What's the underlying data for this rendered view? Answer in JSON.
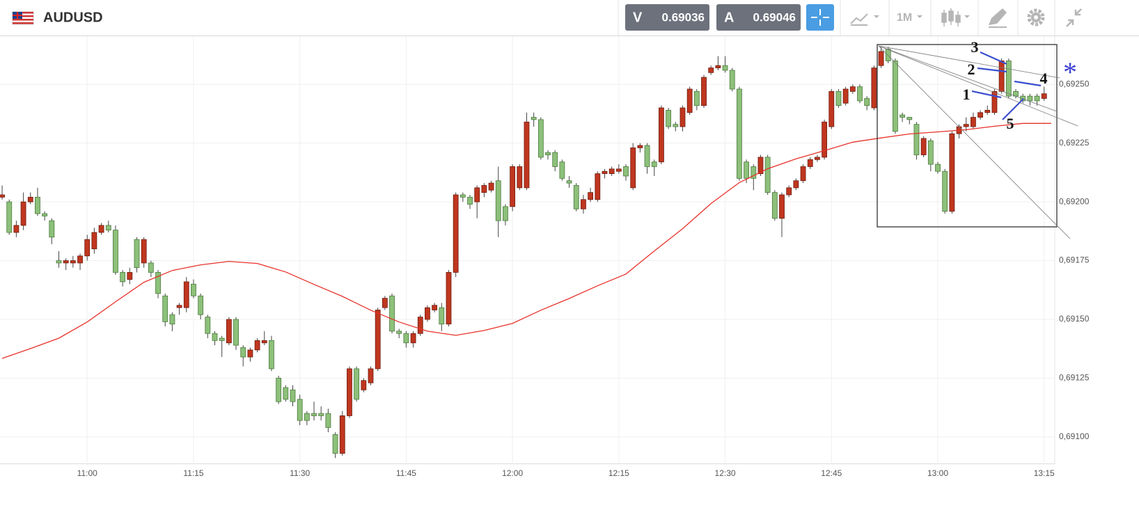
{
  "toolbar": {
    "symbol": "AUDUSD",
    "sell_label": "V",
    "sell_price": "0.69036",
    "buy_label": "A",
    "buy_price": "0.69046",
    "timeframe": "1M"
  },
  "chart_data": {
    "type": "candlestick",
    "up_color": "#c0361f",
    "down_color": "#8dc07a",
    "xlim": [
      647.7,
      796.5
    ],
    "xticks": [
      {
        "value": 660,
        "label": "11:00"
      },
      {
        "value": 675,
        "label": "11:15"
      },
      {
        "value": 690,
        "label": "11:30"
      },
      {
        "value": 705,
        "label": "11:45"
      },
      {
        "value": 720,
        "label": "12:00"
      },
      {
        "value": 735,
        "label": "12:15"
      },
      {
        "value": 750,
        "label": "12:30"
      },
      {
        "value": 765,
        "label": "12:45"
      },
      {
        "value": 780,
        "label": "13:00"
      },
      {
        "value": 795,
        "label": "13:15"
      }
    ],
    "ylim": [
      0.69089,
      0.692705
    ],
    "yticks": [
      {
        "value": 0.691,
        "label": "0,69100"
      },
      {
        "value": 0.69125,
        "label": "0,69125"
      },
      {
        "value": 0.6915,
        "label": "0,69150"
      },
      {
        "value": 0.69175,
        "label": "0,69175"
      },
      {
        "value": 0.692,
        "label": "0,69200"
      },
      {
        "value": 0.69225,
        "label": "0,69225"
      },
      {
        "value": 0.6925,
        "label": "0,69250"
      }
    ],
    "grid": true,
    "x": [
      648,
      649,
      650,
      651,
      652,
      653,
      654,
      655,
      656,
      657,
      658,
      659,
      660,
      661,
      662,
      663,
      664,
      665,
      666,
      667,
      668,
      669,
      670,
      671,
      672,
      673,
      674,
      675,
      676,
      677,
      678,
      679,
      680,
      681,
      682,
      683,
      684,
      685,
      686,
      687,
      688,
      689,
      690,
      691,
      692,
      693,
      694,
      695,
      696,
      697,
      698,
      699,
      700,
      701,
      702,
      703,
      704,
      705,
      706,
      707,
      708,
      709,
      710,
      711,
      712,
      713,
      714,
      715,
      716,
      717,
      718,
      719,
      720,
      721,
      722,
      723,
      724,
      725,
      726,
      727,
      728,
      729,
      730,
      731,
      732,
      733,
      734,
      735,
      736,
      737,
      738,
      739,
      740,
      741,
      742,
      743,
      744,
      745,
      746,
      747,
      748,
      749,
      750,
      751,
      752,
      753,
      754,
      755,
      756,
      757,
      758,
      759,
      760,
      761,
      762,
      763,
      764,
      765,
      766,
      767,
      768,
      769,
      770,
      771,
      772,
      773,
      774,
      775,
      776,
      777,
      778,
      779,
      780,
      781,
      782,
      783,
      784,
      785,
      786,
      787,
      788,
      789,
      790,
      791,
      792,
      793,
      794,
      795
    ],
    "open": [
      0.69202,
      0.692,
      0.69187,
      0.6919,
      0.692,
      0.69202,
      0.69195,
      0.69192,
      0.69175,
      0.69174,
      0.69174,
      0.69174,
      0.69177,
      0.6918,
      0.69187,
      0.6919,
      0.69188,
      0.6917,
      0.69167,
      0.69184,
      0.69174,
      0.69174,
      0.6917,
      0.6916,
      0.69152,
      0.69155,
      0.69155,
      0.69165,
      0.6916,
      0.69151,
      0.69144,
      0.69142,
      0.6914,
      0.6915,
      0.69138,
      0.69134,
      0.69137,
      0.6914,
      0.69141,
      0.69125,
      0.69121,
      0.6912,
      0.69116,
      0.6911,
      0.6911,
      0.6911,
      0.6911,
      0.69101,
      0.69093,
      0.69109,
      0.69129,
      0.6912,
      0.69123,
      0.69129,
      0.69155,
      0.6916,
      0.69145,
      0.69144,
      0.6914,
      0.69144,
      0.6915,
      0.69154,
      0.69155,
      0.69148,
      0.6917,
      0.69203,
      0.69202,
      0.692,
      0.69204,
      0.69205,
      0.69209,
      0.69198,
      0.69198,
      0.69206,
      0.69206,
      0.69236,
      0.69235,
      0.69221,
      0.69221,
      0.69217,
      0.69209,
      0.69207,
      0.69197,
      0.69201,
      0.69201,
      0.69212,
      0.69212,
      0.69213,
      0.69215,
      0.69206,
      0.69223,
      0.69224,
      0.69217,
      0.69217,
      0.69239,
      0.69233,
      0.69232,
      0.69238,
      0.69247,
      0.69241,
      0.69255,
      0.69257,
      0.69258,
      0.69256,
      0.69248,
      0.69217,
      0.69215,
      0.69212,
      0.69219,
      0.69204,
      0.69193,
      0.69203,
      0.69206,
      0.69209,
      0.69215,
      0.69218,
      0.69219,
      0.69232,
      0.69247,
      0.69242,
      0.69247,
      0.69249,
      0.69244,
      0.6924,
      0.69258,
      0.69265,
      0.6926,
      0.69237,
      0.69236,
      0.69233,
      0.6922,
      0.69226,
      0.69216,
      0.69213,
      0.69196,
      0.69229,
      0.69232,
      0.69232,
      0.69236,
      0.69238,
      0.69238,
      0.69247,
      0.6926,
      0.69247,
      0.69245,
      0.69245,
      0.69245,
      0.69244
    ],
    "high": [
      0.69207,
      0.69201,
      0.69192,
      0.69204,
      0.69204,
      0.69206,
      0.69196,
      0.69193,
      0.69179,
      0.69176,
      0.69177,
      0.69178,
      0.69186,
      0.69189,
      0.69191,
      0.69192,
      0.6919,
      0.69171,
      0.69172,
      0.69185,
      0.69185,
      0.69175,
      0.69171,
      0.69161,
      0.69153,
      0.69157,
      0.69168,
      0.69167,
      0.69161,
      0.69152,
      0.69145,
      0.69143,
      0.69151,
      0.69151,
      0.69139,
      0.69138,
      0.69142,
      0.69145,
      0.69143,
      0.69126,
      0.69122,
      0.69122,
      0.69118,
      0.69111,
      0.69115,
      0.69113,
      0.69112,
      0.69102,
      0.69111,
      0.6913,
      0.6913,
      0.69125,
      0.6913,
      0.69155,
      0.6916,
      0.69161,
      0.69146,
      0.69145,
      0.69145,
      0.69152,
      0.69156,
      0.69157,
      0.69157,
      0.69171,
      0.69204,
      0.69204,
      0.69203,
      0.69207,
      0.69208,
      0.69209,
      0.69215,
      0.69199,
      0.69216,
      0.69216,
      0.69238,
      0.69238,
      0.69236,
      0.69222,
      0.69222,
      0.69218,
      0.69211,
      0.69208,
      0.69203,
      0.69206,
      0.69213,
      0.69214,
      0.69215,
      0.69216,
      0.69216,
      0.69225,
      0.69225,
      0.69225,
      0.69218,
      0.69241,
      0.6924,
      0.69234,
      0.69241,
      0.69249,
      0.69248,
      0.69254,
      0.69258,
      0.69262,
      0.69262,
      0.69257,
      0.69249,
      0.69218,
      0.69216,
      0.6922,
      0.6922,
      0.69205,
      0.69204,
      0.69207,
      0.6921,
      0.69216,
      0.69219,
      0.6922,
      0.69235,
      0.69248,
      0.69248,
      0.69249,
      0.6925,
      0.6925,
      0.69245,
      0.69258,
      0.69266,
      0.69266,
      0.69261,
      0.69238,
      0.69236,
      0.69234,
      0.69228,
      0.69227,
      0.69217,
      0.69214,
      0.6923,
      0.69233,
      0.69236,
      0.69238,
      0.69239,
      0.69241,
      0.69248,
      0.69261,
      0.69261,
      0.69248,
      0.69246,
      0.69246,
      0.69246,
      0.69249
    ],
    "low": [
      0.69201,
      0.69186,
      0.69185,
      0.69188,
      0.69199,
      0.69194,
      0.69192,
      0.69182,
      0.69172,
      0.69171,
      0.69172,
      0.69171,
      0.69175,
      0.69178,
      0.69186,
      0.69187,
      0.69169,
      0.69164,
      0.69165,
      0.6917,
      0.69172,
      0.69168,
      0.69159,
      0.69147,
      0.69145,
      0.69152,
      0.69153,
      0.69159,
      0.6915,
      0.69142,
      0.69139,
      0.69134,
      0.69139,
      0.69137,
      0.6913,
      0.69132,
      0.69136,
      0.69139,
      0.69128,
      0.69114,
      0.69115,
      0.69113,
      0.69105,
      0.69105,
      0.69107,
      0.69107,
      0.69102,
      0.69091,
      0.69092,
      0.69108,
      0.69115,
      0.69119,
      0.69122,
      0.69128,
      0.69154,
      0.69144,
      0.69142,
      0.69138,
      0.69138,
      0.69143,
      0.69149,
      0.69153,
      0.69145,
      0.69147,
      0.69168,
      0.692,
      0.69197,
      0.69193,
      0.69202,
      0.69204,
      0.69185,
      0.6919,
      0.69196,
      0.69205,
      0.69205,
      0.69232,
      0.69218,
      0.69218,
      0.69213,
      0.69209,
      0.69206,
      0.69196,
      0.69195,
      0.692,
      0.692,
      0.6921,
      0.69211,
      0.69212,
      0.69209,
      0.69205,
      0.69221,
      0.69212,
      0.69211,
      0.69216,
      0.69231,
      0.6923,
      0.6923,
      0.69237,
      0.69239,
      0.6924,
      0.69254,
      0.69256,
      0.69255,
      0.69247,
      0.69209,
      0.69208,
      0.69205,
      0.69211,
      0.69203,
      0.69192,
      0.69185,
      0.69202,
      0.69205,
      0.69208,
      0.69214,
      0.69217,
      0.69218,
      0.69231,
      0.6924,
      0.69241,
      0.69246,
      0.69242,
      0.69239,
      0.69239,
      0.69257,
      0.69259,
      0.69229,
      0.69234,
      0.69233,
      0.69218,
      0.69219,
      0.69213,
      0.69212,
      0.69195,
      0.69195,
      0.69227,
      0.6923,
      0.69231,
      0.69235,
      0.69237,
      0.69237,
      0.69246,
      0.69244,
      0.69244,
      0.69242,
      0.69241,
      0.69241,
      0.69243
    ],
    "close": [
      0.69203,
      0.69187,
      0.6919,
      0.692,
      0.69202,
      0.69195,
      0.69194,
      0.69185,
      0.69174,
      0.69175,
      0.69175,
      0.69177,
      0.69184,
      0.69187,
      0.6919,
      0.69188,
      0.6917,
      0.69166,
      0.6917,
      0.69172,
      0.69184,
      0.6917,
      0.69161,
      0.69149,
      0.69148,
      0.69156,
      0.69166,
      0.6916,
      0.69152,
      0.69144,
      0.69141,
      0.69141,
      0.6915,
      0.69139,
      0.69134,
      0.69137,
      0.69141,
      0.69141,
      0.69129,
      0.69115,
      0.69116,
      0.69115,
      0.69107,
      0.69107,
      0.69109,
      0.69109,
      0.69104,
      0.69093,
      0.69109,
      0.69129,
      0.69116,
      0.69124,
      0.69129,
      0.69154,
      0.69159,
      0.69145,
      0.69144,
      0.6914,
      0.69144,
      0.69151,
      0.69155,
      0.69156,
      0.69148,
      0.6917,
      0.69203,
      0.69202,
      0.69199,
      0.69206,
      0.69207,
      0.69208,
      0.69192,
      0.69192,
      0.69215,
      0.69215,
      0.69234,
      0.69235,
      0.69219,
      0.6922,
      0.69215,
      0.6921,
      0.69208,
      0.69197,
      0.69201,
      0.69204,
      0.69212,
      0.69213,
      0.69214,
      0.69214,
      0.69211,
      0.69223,
      0.69224,
      0.69215,
      0.69215,
      0.6924,
      0.69232,
      0.69232,
      0.6924,
      0.69248,
      0.69241,
      0.69253,
      0.69257,
      0.69258,
      0.69256,
      0.69248,
      0.6921,
      0.6921,
      0.6921,
      0.69219,
      0.69204,
      0.69193,
      0.69203,
      0.69206,
      0.69209,
      0.69215,
      0.69218,
      0.69219,
      0.69234,
      0.69247,
      0.69241,
      0.69248,
      0.69249,
      0.69243,
      0.69241,
      0.69257,
      0.69264,
      0.6926,
      0.6923,
      0.69236,
      0.69235,
      0.6922,
      0.69227,
      0.69216,
      0.69213,
      0.69196,
      0.69229,
      0.69232,
      0.69233,
      0.69236,
      0.69238,
      0.69239,
      0.69247,
      0.6926,
      0.69245,
      0.69245,
      0.69243,
      0.69243,
      0.69243,
      0.69246
    ],
    "moving_average": {
      "color": "#e8312a",
      "x": [
        648,
        652,
        656,
        660,
        664,
        668,
        672,
        676,
        680,
        684,
        688,
        692,
        696,
        700,
        704,
        708,
        712,
        716,
        720,
        724,
        728,
        732,
        736,
        740,
        744,
        748,
        752,
        756,
        760,
        764,
        768,
        772,
        776,
        780,
        784,
        788,
        792,
        796
      ],
      "values": [
        0.691334,
        0.691376,
        0.69142,
        0.691489,
        0.691575,
        0.691658,
        0.691708,
        0.691732,
        0.691747,
        0.691738,
        0.691702,
        0.691649,
        0.691598,
        0.691539,
        0.691489,
        0.69145,
        0.691432,
        0.691453,
        0.691483,
        0.691539,
        0.691589,
        0.691643,
        0.691693,
        0.691791,
        0.691886,
        0.691993,
        0.692082,
        0.692141,
        0.692183,
        0.692218,
        0.692254,
        0.692272,
        0.692289,
        0.692298,
        0.692307,
        0.692322,
        0.692334,
        0.692334
      ]
    },
    "annotations": [
      "3",
      "2",
      "1",
      "4",
      "5",
      "*"
    ]
  }
}
